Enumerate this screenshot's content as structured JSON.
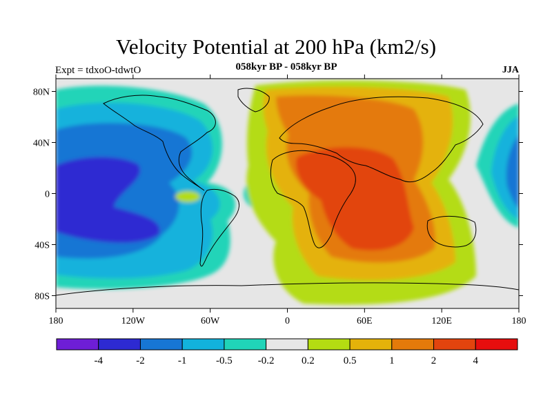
{
  "title": "Velocity Potential at 200 hPa (km2/s)",
  "subtitle": "058kyr BP - 058kyr BP",
  "left_label": "Expt = tdxoO-tdwtO",
  "right_label": "JJA",
  "lat_ticks": [
    "80N",
    "40N",
    "0",
    "40S",
    "80S"
  ],
  "lon_ticks": [
    "180",
    "120W",
    "60W",
    "0",
    "60E",
    "120E",
    "180"
  ],
  "colorbar": {
    "labels": [
      "-4",
      "-2",
      "-1",
      "-0.5",
      "-0.2",
      "0.2",
      "0.5",
      "1",
      "2",
      "4"
    ],
    "colors": [
      "#6e1ed6",
      "#2d2ad2",
      "#1776d4",
      "#12b2dc",
      "#20d4b8",
      "#e6e6e6",
      "#b4dc12",
      "#e4b20a",
      "#e47a0a",
      "#e2440e",
      "#e60e0e"
    ]
  },
  "map": {
    "projection": "cylindrical-equidistant",
    "lon_range": [
      -180,
      180
    ],
    "lat_range": [
      -90,
      90
    ]
  }
}
